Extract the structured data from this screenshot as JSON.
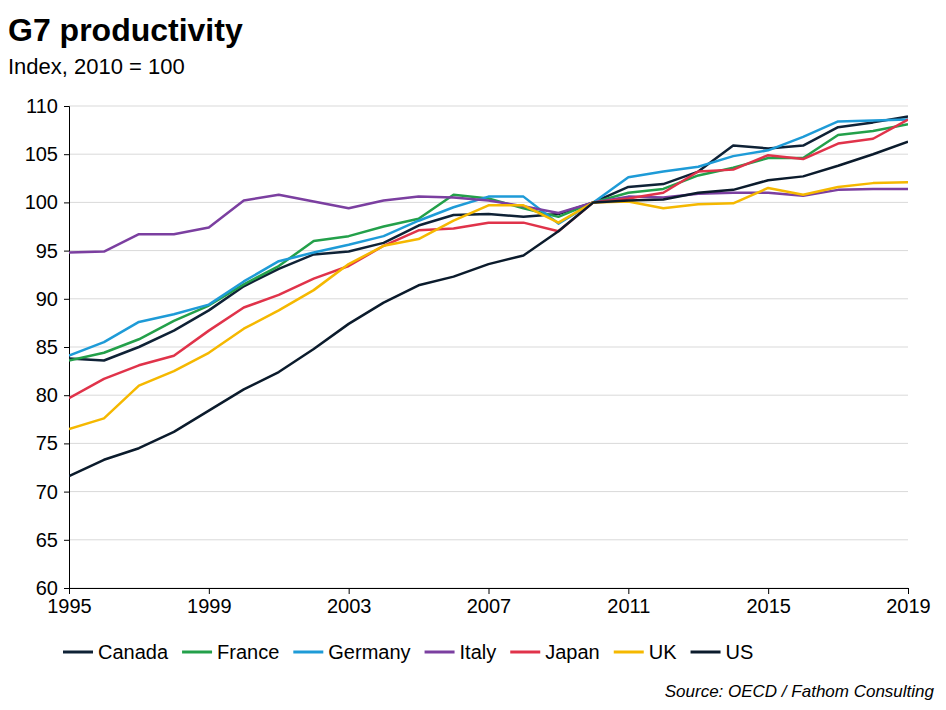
{
  "chart_data": {
    "type": "line",
    "title": "G7 productivity",
    "subtitle": "Index, 2010 = 100",
    "source": "Source: OECD / Fathom Consulting",
    "x": [
      1995,
      1996,
      1997,
      1998,
      1999,
      2000,
      2001,
      2002,
      2003,
      2004,
      2005,
      2006,
      2007,
      2008,
      2009,
      2010,
      2011,
      2012,
      2013,
      2014,
      2015,
      2016,
      2017,
      2018,
      2019
    ],
    "xlim": [
      1995,
      2019
    ],
    "xticks": [
      1995,
      1999,
      2003,
      2007,
      2011,
      2015,
      2019
    ],
    "ylim": [
      60,
      110
    ],
    "yticks": [
      60,
      65,
      70,
      75,
      80,
      85,
      90,
      95,
      100,
      105,
      110
    ],
    "grid": true,
    "legend": "bottom",
    "series": [
      {
        "name": "Canada",
        "color": "#0f2236",
        "values": [
          83.8,
          83.6,
          85.0,
          86.7,
          88.8,
          91.3,
          93.1,
          94.6,
          94.9,
          95.8,
          97.6,
          98.7,
          98.8,
          98.5,
          98.8,
          100,
          101.6,
          101.9,
          103.2,
          105.9,
          105.6,
          105.9,
          107.8,
          108.3,
          108.9
        ]
      },
      {
        "name": "France",
        "color": "#23a04a",
        "values": [
          83.6,
          84.4,
          85.8,
          87.7,
          89.3,
          91.5,
          93.4,
          96.0,
          96.5,
          97.5,
          98.3,
          100.8,
          100.4,
          99.4,
          98.5,
          100,
          101.0,
          101.4,
          102.8,
          103.6,
          104.6,
          104.6,
          107.0,
          107.4,
          108.1
        ]
      },
      {
        "name": "Germany",
        "color": "#1e9bd7",
        "values": [
          84.1,
          85.5,
          87.6,
          88.4,
          89.4,
          91.8,
          93.9,
          94.8,
          95.6,
          96.5,
          98.1,
          99.5,
          100.6,
          100.6,
          97.8,
          100,
          102.6,
          103.2,
          103.7,
          104.8,
          105.4,
          106.8,
          108.4,
          108.5,
          108.6
        ]
      },
      {
        "name": "Italy",
        "color": "#7b3fa0",
        "values": [
          94.8,
          94.9,
          96.7,
          96.7,
          97.4,
          100.2,
          100.8,
          100.1,
          99.4,
          100.2,
          100.6,
          100.5,
          100.2,
          99.6,
          98.9,
          100,
          100.6,
          100.5,
          100.9,
          101.0,
          101.0,
          100.7,
          101.3,
          101.4,
          101.4
        ]
      },
      {
        "name": "Japan",
        "color": "#e0334a",
        "values": [
          79.7,
          81.7,
          83.1,
          84.1,
          86.7,
          89.1,
          90.4,
          92.1,
          93.4,
          95.5,
          97.1,
          97.3,
          97.9,
          97.9,
          97.0,
          100,
          100.4,
          101.0,
          103.2,
          103.4,
          104.9,
          104.5,
          106.1,
          106.6,
          108.6
        ]
      },
      {
        "name": "UK",
        "color": "#f5b800",
        "values": [
          76.5,
          77.6,
          81.0,
          82.5,
          84.4,
          86.9,
          88.8,
          90.9,
          93.6,
          95.5,
          96.2,
          98.1,
          99.7,
          99.7,
          97.9,
          100,
          100.1,
          99.4,
          99.8,
          99.9,
          101.5,
          100.8,
          101.6,
          102.0,
          102.1
        ]
      },
      {
        "name": "US",
        "color": "#0b1b2c",
        "values": [
          71.6,
          73.3,
          74.5,
          76.2,
          78.4,
          80.6,
          82.4,
          84.8,
          87.4,
          89.6,
          91.4,
          92.3,
          93.6,
          94.5,
          97.0,
          100,
          100.2,
          100.3,
          101.0,
          101.3,
          102.3,
          102.7,
          103.8,
          105.0,
          106.3
        ]
      }
    ]
  }
}
